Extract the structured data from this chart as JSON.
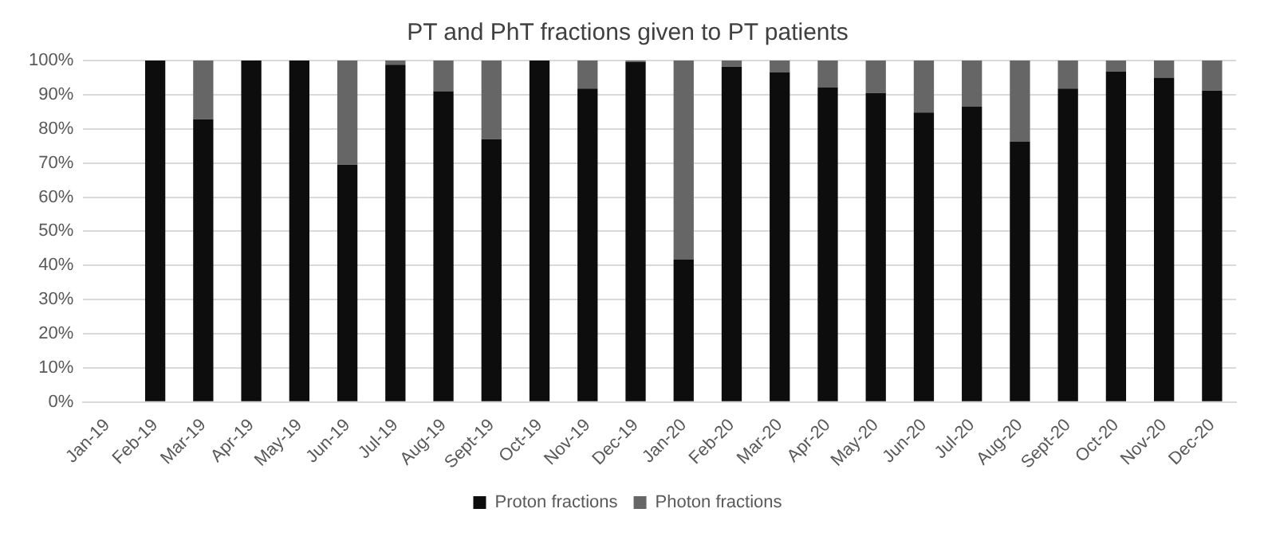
{
  "chart_data": {
    "type": "bar",
    "title": "PT and PhT fractions given to PT patients",
    "stacked": true,
    "categories": [
      "Jan-19",
      "Feb-19",
      "Mar-19",
      "Apr-19",
      "May-19",
      "Jun-19",
      "Jul-19",
      "Aug-19",
      "Sept-19",
      "Oct-19",
      "Nov-19",
      "Dec-19",
      "Jan-20",
      "Feb-20",
      "Mar-20",
      "Apr-20",
      "May-20",
      "Jun-20",
      "Jul-20",
      "Aug-20",
      "Sept-20",
      "Oct-20",
      "Nov-20",
      "Dec-20"
    ],
    "series": [
      {
        "name": "Proton fractions",
        "color": "#0d0d0d",
        "values": [
          null,
          100,
          82.8,
          100,
          100,
          69.5,
          98.8,
          91,
          77,
          100,
          91.8,
          99.6,
          41.7,
          98.2,
          96.5,
          92.2,
          90.5,
          84.8,
          86.5,
          76.2,
          91.8,
          96.8,
          95,
          91.2
        ]
      },
      {
        "name": "Photon fractions",
        "color": "#666666",
        "values": [
          null,
          0,
          17.2,
          0,
          0,
          30.5,
          1.2,
          9,
          23,
          0,
          8.2,
          0.4,
          58.3,
          1.8,
          3.5,
          7.8,
          9.5,
          15.2,
          13.5,
          23.8,
          8.2,
          3.2,
          5,
          8.8
        ]
      }
    ],
    "ylim": [
      0,
      100
    ],
    "yticks": [
      {
        "value": 0,
        "label": "0%"
      },
      {
        "value": 10,
        "label": "10%"
      },
      {
        "value": 20,
        "label": "20%"
      },
      {
        "value": 30,
        "label": "30%"
      },
      {
        "value": 40,
        "label": "40%"
      },
      {
        "value": 50,
        "label": "50%"
      },
      {
        "value": 60,
        "label": "60%"
      },
      {
        "value": 70,
        "label": "70%"
      },
      {
        "value": 80,
        "label": "80%"
      },
      {
        "value": 90,
        "label": "90%"
      },
      {
        "value": 100,
        "label": "100%"
      }
    ],
    "grid": "y",
    "legend": "bottom"
  }
}
